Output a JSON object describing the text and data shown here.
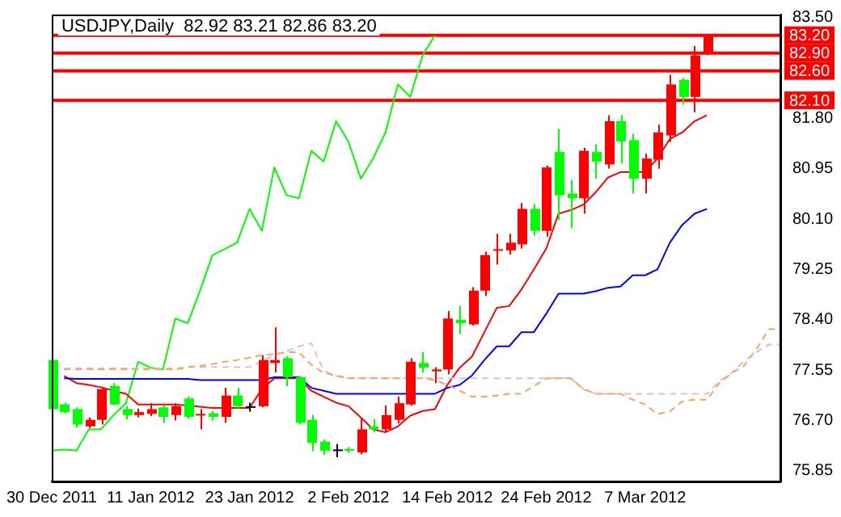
{
  "chart_data": {
    "type": "candlestick",
    "title": "USDJPY,Daily  82.92 83.21 82.86 83.20",
    "categories": [
      "30 Dec 2011",
      null,
      null,
      null,
      null,
      null,
      null,
      null,
      "11 Jan 2012",
      null,
      null,
      null,
      null,
      null,
      null,
      null,
      "23 Jan 2012",
      null,
      null,
      null,
      null,
      null,
      null,
      null,
      "2 Feb 2012",
      null,
      null,
      null,
      null,
      null,
      null,
      null,
      "14 Feb 2012",
      null,
      null,
      null,
      null,
      null,
      null,
      null,
      "24 Feb 2012",
      null,
      null,
      null,
      null,
      null,
      null,
      null,
      "7 Mar 2012",
      null,
      null,
      null,
      null,
      null,
      null,
      null,
      null,
      null,
      null,
      null
    ],
    "ohlc": [
      [
        77.72,
        77.75,
        76.85,
        76.89
      ],
      [
        76.97,
        77.0,
        76.82,
        76.84
      ],
      [
        76.89,
        76.92,
        76.58,
        76.63
      ],
      [
        76.6,
        76.75,
        76.57,
        76.71
      ],
      [
        76.71,
        77.25,
        76.63,
        77.23
      ],
      [
        77.28,
        77.33,
        76.95,
        76.97
      ],
      [
        76.89,
        76.94,
        76.72,
        76.79
      ],
      [
        76.79,
        76.9,
        76.75,
        76.84
      ],
      [
        76.81,
        76.99,
        76.77,
        76.89
      ],
      [
        76.92,
        76.95,
        76.66,
        76.76
      ],
      [
        76.79,
        76.99,
        76.7,
        76.94
      ],
      [
        77.07,
        77.1,
        76.73,
        76.76
      ],
      [
        76.79,
        76.89,
        76.55,
        76.81
      ],
      [
        76.82,
        76.86,
        76.7,
        76.76
      ],
      [
        76.76,
        77.25,
        76.66,
        77.12
      ],
      [
        77.12,
        77.25,
        76.9,
        76.94
      ],
      [
        76.94,
        77.0,
        76.85,
        76.94
      ],
      [
        76.94,
        77.8,
        76.92,
        77.72
      ],
      [
        77.67,
        78.27,
        77.51,
        77.72
      ],
      [
        77.75,
        77.78,
        77.28,
        77.43
      ],
      [
        77.43,
        77.45,
        76.63,
        76.66
      ],
      [
        76.71,
        76.79,
        76.18,
        76.32
      ],
      [
        76.34,
        76.38,
        76.12,
        76.19
      ],
      [
        76.21,
        76.3,
        76.08,
        76.21
      ],
      [
        76.22,
        76.25,
        76.15,
        76.19
      ],
      [
        76.16,
        76.73,
        76.13,
        76.55
      ],
      [
        76.6,
        76.72,
        76.5,
        76.55
      ],
      [
        76.55,
        76.95,
        76.5,
        76.79
      ],
      [
        76.71,
        77.1,
        76.65,
        76.99
      ],
      [
        76.97,
        77.75,
        76.95,
        77.69
      ],
      [
        77.67,
        77.85,
        77.51,
        77.59
      ],
      [
        77.53,
        77.6,
        77.33,
        77.56
      ],
      [
        77.56,
        78.55,
        77.48,
        78.42
      ],
      [
        78.4,
        78.63,
        78.16,
        78.34
      ],
      [
        78.32,
        78.95,
        78.3,
        78.89
      ],
      [
        78.89,
        79.55,
        78.8,
        79.49
      ],
      [
        79.59,
        79.85,
        79.33,
        79.59
      ],
      [
        79.57,
        79.85,
        79.5,
        79.7
      ],
      [
        79.67,
        80.37,
        79.6,
        80.27
      ],
      [
        80.27,
        80.35,
        79.82,
        79.9
      ],
      [
        79.9,
        81.0,
        79.8,
        80.97
      ],
      [
        81.23,
        81.62,
        80.08,
        80.5
      ],
      [
        80.53,
        80.76,
        79.95,
        80.45
      ],
      [
        80.45,
        81.3,
        80.19,
        81.25
      ],
      [
        81.23,
        81.36,
        80.78,
        81.07
      ],
      [
        81.02,
        81.85,
        80.95,
        81.75
      ],
      [
        81.75,
        81.85,
        81.04,
        81.41
      ],
      [
        81.43,
        81.54,
        80.53,
        80.78
      ],
      [
        80.78,
        81.2,
        80.53,
        81.12
      ],
      [
        81.1,
        81.69,
        80.95,
        81.56
      ],
      [
        81.51,
        82.53,
        81.4,
        82.37
      ],
      [
        82.45,
        82.48,
        82.03,
        82.16
      ],
      [
        82.16,
        83.02,
        81.9,
        82.86
      ],
      [
        82.92,
        83.21,
        82.86,
        83.2
      ],
      null,
      null,
      null,
      null,
      null,
      null
    ],
    "colors": [
      "#00ff00",
      "#00ff00",
      "#00ff00",
      "#ff0000",
      "#ff0000",
      "#00ff00",
      "#00ff00",
      "#ff0000",
      "#ff0000",
      "#00ff00",
      "#ff0000",
      "#00ff00",
      "#ff0000",
      "#00ff00",
      "#ff0000",
      "#00ff00",
      "#000000",
      "#ff0000",
      "#ff0000",
      "#00ff00",
      "#00ff00",
      "#00ff00",
      "#00ff00",
      "#000000",
      "#00ff00",
      "#ff0000",
      "#00ff00",
      "#ff0000",
      "#ff0000",
      "#ff0000",
      "#00ff00",
      "#ff0000",
      "#ff0000",
      "#00ff00",
      "#ff0000",
      "#ff0000",
      "#ff0000",
      "#ff0000",
      "#ff0000",
      "#00ff00",
      "#ff0000",
      "#00ff00",
      "#00ff00",
      "#ff0000",
      "#00ff00",
      "#ff0000",
      "#00ff00",
      "#00ff00",
      "#ff0000",
      "#ff0000",
      "#ff0000",
      "#00ff00",
      "#ff0000",
      "#ff0000",
      null,
      null,
      null,
      null,
      null,
      null
    ],
    "series": [
      {
        "type": "line",
        "color": "#f4a460",
        "line_style": "dashed",
        "values": [
          null,
          77.56,
          77.56,
          77.56,
          77.56,
          77.56,
          77.56,
          77.56,
          77.56,
          77.56,
          77.56,
          77.6,
          77.62,
          77.65,
          77.69,
          77.72,
          77.76,
          77.8,
          77.82,
          77.85,
          77.85,
          77.64,
          77.5,
          77.46,
          77.41,
          77.41,
          77.41,
          77.41,
          77.41,
          77.41,
          77.41,
          77.38,
          77.3,
          77.2,
          77.1,
          77.1,
          77.12,
          77.15,
          77.15,
          77.28,
          77.41,
          77.41,
          77.41,
          77.23,
          77.15,
          77.15,
          77.15,
          77.05,
          76.97,
          76.81,
          76.85,
          77.02,
          77.05,
          77.05,
          77.33,
          77.5,
          77.62,
          77.9,
          78.24,
          78.24
        ]
      },
      {
        "type": "line",
        "color": "#d8bfd8",
        "line_style": "dashed",
        "values": [
          null,
          77.58,
          77.58,
          77.58,
          77.58,
          77.58,
          77.58,
          77.58,
          77.58,
          77.58,
          77.58,
          77.6,
          77.6,
          77.6,
          77.6,
          77.6,
          77.6,
          77.7,
          77.8,
          77.87,
          77.95,
          78.0,
          77.54,
          77.45,
          77.41,
          77.41,
          77.41,
          77.41,
          77.41,
          77.41,
          77.41,
          77.41,
          77.41,
          77.41,
          77.41,
          77.41,
          77.41,
          77.41,
          77.41,
          77.41,
          77.41,
          77.41,
          77.41,
          77.23,
          77.15,
          77.15,
          77.15,
          77.15,
          77.15,
          77.15,
          77.15,
          77.15,
          77.15,
          77.15,
          77.36,
          77.5,
          77.7,
          77.85,
          77.98,
          77.98
        ]
      },
      {
        "type": "line",
        "color": "#0000ff",
        "line_style": "solid",
        "values": [
          null,
          77.41,
          77.4,
          77.4,
          77.4,
          77.4,
          77.4,
          77.4,
          77.4,
          77.4,
          77.4,
          77.4,
          77.38,
          77.38,
          77.38,
          77.38,
          77.38,
          77.38,
          77.43,
          77.43,
          77.43,
          77.25,
          77.2,
          77.15,
          77.15,
          77.15,
          77.15,
          77.15,
          77.15,
          77.15,
          77.15,
          77.15,
          77.25,
          77.3,
          77.46,
          77.72,
          77.95,
          77.95,
          78.19,
          78.19,
          78.5,
          78.84,
          78.84,
          78.84,
          78.88,
          78.94,
          78.96,
          79.15,
          79.15,
          79.25,
          79.7,
          80.0,
          80.19,
          80.27,
          null,
          null,
          null,
          null,
          null,
          null
        ]
      },
      {
        "type": "line",
        "color": "#ff0000",
        "line_style": "solid",
        "values": [
          null,
          77.45,
          77.33,
          77.3,
          77.26,
          77.2,
          77.15,
          76.97,
          76.97,
          76.97,
          76.97,
          76.95,
          76.93,
          76.91,
          76.91,
          76.91,
          76.91,
          77.23,
          77.41,
          77.41,
          77.41,
          77.2,
          77.1,
          77.0,
          76.94,
          76.75,
          76.55,
          76.5,
          76.6,
          76.78,
          76.86,
          76.89,
          77.3,
          77.59,
          77.78,
          78.19,
          78.6,
          78.63,
          78.91,
          79.25,
          79.6,
          80.19,
          80.25,
          80.34,
          80.55,
          80.8,
          80.89,
          80.89,
          80.89,
          81.12,
          81.45,
          81.56,
          81.75,
          81.85,
          null,
          null,
          null,
          null,
          null,
          null
        ]
      },
      {
        "type": "line",
        "color": "#00ff00",
        "line_style": "solid",
        "values": [
          76.19,
          76.21,
          76.19,
          76.55,
          76.55,
          76.79,
          76.99,
          77.69,
          77.59,
          77.56,
          78.42,
          78.34,
          78.89,
          79.49,
          79.59,
          79.7,
          80.27,
          79.9,
          80.97,
          80.5,
          80.45,
          81.25,
          81.07,
          81.75,
          81.41,
          80.78,
          81.12,
          81.56,
          82.37,
          82.16,
          82.86,
          83.2,
          null,
          null,
          null,
          null,
          null,
          null,
          null,
          null,
          null,
          null,
          null,
          null,
          null,
          null,
          null,
          null,
          null,
          null,
          null,
          null,
          null,
          null,
          null,
          null,
          null,
          null,
          null,
          null
        ]
      }
    ],
    "ref_lines": [
      {
        "axis": "y",
        "value": 82.1,
        "label": "82.10",
        "color": "#ff0000"
      },
      {
        "axis": "y",
        "value": 82.6,
        "label": "82.60",
        "color": "#ff0000"
      },
      {
        "axis": "y",
        "value": 82.9,
        "label": "82.90",
        "color": "#ff0000"
      },
      {
        "axis": "y",
        "value": 83.2,
        "label": "83.20",
        "color": "#ff0000"
      }
    ],
    "ylim": [
      75.67,
      83.55
    ],
    "yticks": [
      {
        "value": 75.85,
        "label": "75.85"
      },
      {
        "value": 76.7,
        "label": "76.70"
      },
      {
        "value": 77.55,
        "label": "77.55"
      },
      {
        "value": 78.4,
        "label": "78.40"
      },
      {
        "value": 79.25,
        "label": "79.25"
      },
      {
        "value": 80.1,
        "label": "80.10"
      },
      {
        "value": 80.95,
        "label": "80.95"
      },
      {
        "value": 81.8,
        "label": "81.80"
      },
      {
        "value": 83.5,
        "label": "83.50"
      }
    ],
    "grid": false,
    "legend": false
  }
}
